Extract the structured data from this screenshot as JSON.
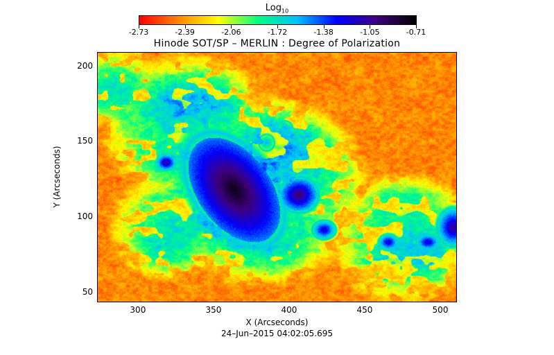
{
  "colorbar": {
    "title": "Log",
    "title_subscript": "10",
    "tick_labels": [
      "-2.73",
      "-2.39",
      "-2.06",
      "-1.72",
      "-1.38",
      "-1.05",
      "-0.71"
    ],
    "range": [
      -2.73,
      -0.71
    ],
    "colors": [
      "#ff0000",
      "#ff8800",
      "#ffff00",
      "#00ff80",
      "#00c0ff",
      "#0000ff",
      "#400080",
      "#000000"
    ]
  },
  "title": "Hinode SOT/SP – MERLIN : Degree of Polarization",
  "x_axis": {
    "label": "X (Arcseconds)",
    "tick_labels": [
      "300",
      "350",
      "400",
      "450",
      "500"
    ],
    "range": [
      273,
      511
    ]
  },
  "y_axis": {
    "label": "Y (Arcseconds)",
    "tick_labels": [
      "50",
      "100",
      "150",
      "200"
    ],
    "range": [
      43,
      209
    ]
  },
  "timestamp": "24–Jun–2015 04:02:05.695",
  "image": {
    "description_features": [
      "sunspot",
      "pores",
      "plage network",
      "quiet sun"
    ]
  }
}
